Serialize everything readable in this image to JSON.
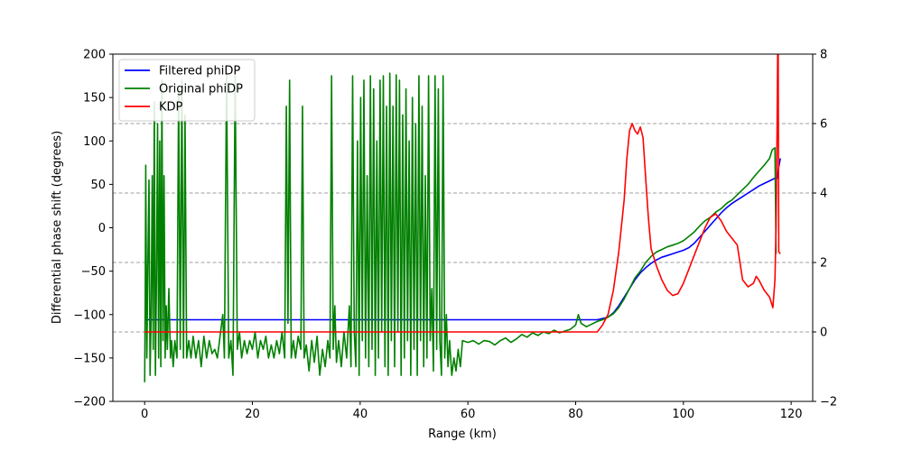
{
  "chart_data": {
    "type": "line",
    "title": "",
    "xlabel": "Range (km)",
    "ylabel": "Differential phase shift (degrees)",
    "xlim": [
      -5.9,
      124.0
    ],
    "ylim": [
      -200,
      200
    ],
    "ylim_right": [
      -2,
      8
    ],
    "x_ticks": [
      0,
      20,
      40,
      60,
      80,
      100,
      120
    ],
    "y_ticks": [
      -200,
      -150,
      -100,
      -50,
      0,
      50,
      100,
      150,
      200
    ],
    "y_ticks_right": [
      -2,
      0,
      2,
      4,
      6,
      8
    ],
    "grid_right_y": [
      0,
      2,
      4,
      6
    ],
    "legend_position": "upper-left",
    "legend": [
      "Filtered phiDP",
      "Original phiDP",
      "KDP"
    ],
    "series": [
      {
        "name": "Filtered phiDP",
        "axis": "left",
        "color": "#0000ff",
        "points": [
          [
            0,
            -106
          ],
          [
            80,
            -106
          ],
          [
            84,
            -106
          ],
          [
            86,
            -103
          ],
          [
            87,
            -98
          ],
          [
            88,
            -90
          ],
          [
            89,
            -80
          ],
          [
            90,
            -70
          ],
          [
            91,
            -60
          ],
          [
            92,
            -52
          ],
          [
            93,
            -46
          ],
          [
            94,
            -41
          ],
          [
            95,
            -37
          ],
          [
            96,
            -34
          ],
          [
            97,
            -32
          ],
          [
            98,
            -30
          ],
          [
            99,
            -28
          ],
          [
            100,
            -26
          ],
          [
            101,
            -23
          ],
          [
            102,
            -18
          ],
          [
            103,
            -11
          ],
          [
            104,
            -4
          ],
          [
            105,
            3
          ],
          [
            106,
            10
          ],
          [
            107,
            17
          ],
          [
            108,
            23
          ],
          [
            109,
            28
          ],
          [
            110,
            32
          ],
          [
            111,
            36
          ],
          [
            112,
            40
          ],
          [
            113,
            44
          ],
          [
            114,
            48
          ],
          [
            115,
            51
          ],
          [
            116,
            54
          ],
          [
            117,
            57
          ],
          [
            117.4,
            57
          ],
          [
            117.7,
            70
          ],
          [
            118,
            80
          ]
        ]
      },
      {
        "name": "Original phiDP",
        "axis": "left",
        "color": "#008000",
        "points": [
          [
            0,
            -178
          ],
          [
            0.1,
            -85
          ],
          [
            0.2,
            72
          ],
          [
            0.4,
            -150
          ],
          [
            0.6,
            -40
          ],
          [
            0.8,
            55
          ],
          [
            1,
            -170
          ],
          [
            1.2,
            -100
          ],
          [
            1.4,
            60
          ],
          [
            1.6,
            -140
          ],
          [
            1.8,
            145
          ],
          [
            2,
            -170
          ],
          [
            2.2,
            -60
          ],
          [
            2.4,
            120
          ],
          [
            2.6,
            -150
          ],
          [
            2.8,
            100
          ],
          [
            3,
            -160
          ],
          [
            3.2,
            170
          ],
          [
            3.4,
            -130
          ],
          [
            3.6,
            60
          ],
          [
            3.8,
            -150
          ],
          [
            4,
            -90
          ],
          [
            4.2,
            -140
          ],
          [
            4.5,
            -70
          ],
          [
            4.8,
            -150
          ],
          [
            5,
            -130
          ],
          [
            5.3,
            -160
          ],
          [
            5.6,
            -130
          ],
          [
            6,
            -150
          ],
          [
            6.3,
            160
          ],
          [
            6.6,
            -140
          ],
          [
            6.9,
            170
          ],
          [
            7.2,
            -150
          ],
          [
            7.5,
            130
          ],
          [
            7.8,
            -150
          ],
          [
            8.2,
            -130
          ],
          [
            8.6,
            -150
          ],
          [
            9,
            -125
          ],
          [
            9.5,
            -150
          ],
          [
            10,
            -130
          ],
          [
            10.5,
            -160
          ],
          [
            11,
            -125
          ],
          [
            11.5,
            -150
          ],
          [
            12,
            -130
          ],
          [
            12.5,
            -145
          ],
          [
            13,
            -140
          ],
          [
            13.5,
            -150
          ],
          [
            14,
            -125
          ],
          [
            14.5,
            -100
          ],
          [
            14.8,
            -150
          ],
          [
            15.2,
            178
          ],
          [
            15.6,
            -150
          ],
          [
            16,
            -130
          ],
          [
            16.4,
            -170
          ],
          [
            16.8,
            175
          ],
          [
            17.2,
            -140
          ],
          [
            17.6,
            -120
          ],
          [
            18,
            -150
          ],
          [
            18.5,
            -130
          ],
          [
            19,
            -145
          ],
          [
            19.5,
            -130
          ],
          [
            20,
            -140
          ],
          [
            20.5,
            -120
          ],
          [
            21,
            -150
          ],
          [
            21.5,
            -130
          ],
          [
            22,
            -140
          ],
          [
            22.5,
            -125
          ],
          [
            23,
            -150
          ],
          [
            23.5,
            -135
          ],
          [
            24,
            -150
          ],
          [
            24.5,
            -130
          ],
          [
            25,
            -145
          ],
          [
            25.5,
            -120
          ],
          [
            26,
            -150
          ],
          [
            26.3,
            140
          ],
          [
            26.6,
            -110
          ],
          [
            26.9,
            170
          ],
          [
            27.2,
            -150
          ],
          [
            27.6,
            -130
          ],
          [
            28,
            -150
          ],
          [
            28.5,
            -125
          ],
          [
            29,
            -140
          ],
          [
            29.3,
            140
          ],
          [
            29.6,
            -150
          ],
          [
            30,
            -135
          ],
          [
            30.5,
            -165
          ],
          [
            31,
            -130
          ],
          [
            31.5,
            -155
          ],
          [
            32,
            -125
          ],
          [
            32.5,
            -170
          ],
          [
            33,
            -140
          ],
          [
            33.5,
            -160
          ],
          [
            34,
            -130
          ],
          [
            34.4,
            -150
          ],
          [
            34.7,
            175
          ],
          [
            35,
            -140
          ],
          [
            35.3,
            -90
          ],
          [
            35.6,
            -155
          ],
          [
            36,
            -130
          ],
          [
            36.5,
            -160
          ],
          [
            37,
            -120
          ],
          [
            37.5,
            -150
          ],
          [
            38,
            -90
          ],
          [
            38.3,
            -160
          ],
          [
            38.6,
            175
          ],
          [
            38.9,
            -120
          ],
          [
            39.2,
            -160
          ],
          [
            39.5,
            100
          ],
          [
            39.8,
            -170
          ],
          [
            40.1,
            150
          ],
          [
            40.4,
            -130
          ],
          [
            40.7,
            170
          ],
          [
            41,
            -150
          ],
          [
            41.3,
            60
          ],
          [
            41.6,
            -160
          ],
          [
            41.9,
            175
          ],
          [
            42.2,
            -140
          ],
          [
            42.5,
            160
          ],
          [
            42.8,
            -170
          ],
          [
            43.1,
            100
          ],
          [
            43.4,
            -150
          ],
          [
            43.7,
            170
          ],
          [
            44,
            -120
          ],
          [
            44.3,
            175
          ],
          [
            44.6,
            -160
          ],
          [
            44.9,
            140
          ],
          [
            45.2,
            -170
          ],
          [
            45.5,
            178
          ],
          [
            45.8,
            -130
          ],
          [
            46.1,
            140
          ],
          [
            46.4,
            -160
          ],
          [
            46.7,
            176
          ],
          [
            47,
            -120
          ],
          [
            47.3,
            170
          ],
          [
            47.6,
            -170
          ],
          [
            47.9,
            130
          ],
          [
            48.2,
            -150
          ],
          [
            48.5,
            160
          ],
          [
            48.8,
            -130
          ],
          [
            49.1,
            100
          ],
          [
            49.4,
            -170
          ],
          [
            49.7,
            150
          ],
          [
            50,
            -140
          ],
          [
            50.3,
            120
          ],
          [
            50.6,
            -170
          ],
          [
            50.9,
            175
          ],
          [
            51.2,
            -130
          ],
          [
            51.5,
            140
          ],
          [
            51.8,
            -160
          ],
          [
            52.1,
            60
          ],
          [
            52.4,
            -150
          ],
          [
            52.7,
            175
          ],
          [
            53,
            -130
          ],
          [
            53.3,
            -70
          ],
          [
            53.6,
            -165
          ],
          [
            53.9,
            175
          ],
          [
            54.2,
            -140
          ],
          [
            54.5,
            160
          ],
          [
            54.8,
            -130
          ],
          [
            55.1,
            -170
          ],
          [
            55.4,
            175
          ],
          [
            55.7,
            -150
          ],
          [
            56,
            -100
          ],
          [
            56.3,
            -160
          ],
          [
            56.6,
            -130
          ],
          [
            57,
            -170
          ],
          [
            57.4,
            -150
          ],
          [
            57.8,
            -165
          ],
          [
            58.2,
            -140
          ],
          [
            58.6,
            -160
          ],
          [
            59,
            -130
          ],
          [
            60,
            -132
          ],
          [
            61,
            -130
          ],
          [
            62,
            -134
          ],
          [
            63,
            -130
          ],
          [
            64,
            -131
          ],
          [
            65,
            -135
          ],
          [
            66,
            -130
          ],
          [
            67,
            -127
          ],
          [
            68,
            -132
          ],
          [
            69,
            -128
          ],
          [
            70,
            -123
          ],
          [
            71,
            -126
          ],
          [
            72,
            -121
          ],
          [
            73,
            -124
          ],
          [
            74,
            -120
          ],
          [
            75,
            -122
          ],
          [
            76,
            -118
          ],
          [
            77,
            -121
          ],
          [
            78,
            -119
          ],
          [
            79,
            -117
          ],
          [
            80,
            -112
          ],
          [
            80.5,
            -100
          ],
          [
            81,
            -110
          ],
          [
            82,
            -114
          ],
          [
            83,
            -111
          ],
          [
            84,
            -108
          ],
          [
            85,
            -106
          ],
          [
            86,
            -103
          ],
          [
            87,
            -99
          ],
          [
            88,
            -92
          ],
          [
            89,
            -82
          ],
          [
            90,
            -70
          ],
          [
            91,
            -58
          ],
          [
            92,
            -50
          ],
          [
            93,
            -40
          ],
          [
            94,
            -33
          ],
          [
            95,
            -28
          ],
          [
            96,
            -25
          ],
          [
            97,
            -22
          ],
          [
            98,
            -20
          ],
          [
            99,
            -18
          ],
          [
            100,
            -15
          ],
          [
            101,
            -10
          ],
          [
            102,
            -5
          ],
          [
            103,
            2
          ],
          [
            104,
            8
          ],
          [
            105,
            12
          ],
          [
            106,
            18
          ],
          [
            107,
            22
          ],
          [
            108,
            28
          ],
          [
            109,
            32
          ],
          [
            110,
            38
          ],
          [
            111,
            44
          ],
          [
            112,
            50
          ],
          [
            113,
            58
          ],
          [
            114,
            65
          ],
          [
            115,
            72
          ],
          [
            116,
            80
          ],
          [
            116.5,
            90
          ],
          [
            117,
            92
          ],
          [
            117.2,
            -30
          ]
        ]
      },
      {
        "name": "KDP",
        "axis": "right",
        "color": "#ff0000",
        "points": [
          [
            0,
            0
          ],
          [
            84,
            0
          ],
          [
            85,
            0.2
          ],
          [
            86,
            0.5
          ],
          [
            87,
            1.2
          ],
          [
            88,
            2.3
          ],
          [
            89,
            3.8
          ],
          [
            89.5,
            5.0
          ],
          [
            90,
            5.8
          ],
          [
            90.5,
            6.0
          ],
          [
            91,
            5.8
          ],
          [
            91.5,
            5.7
          ],
          [
            92,
            5.9
          ],
          [
            92.5,
            5.6
          ],
          [
            93,
            4.4
          ],
          [
            93.5,
            3.3
          ],
          [
            94,
            2.4
          ],
          [
            95,
            1.9
          ],
          [
            96,
            1.5
          ],
          [
            97,
            1.2
          ],
          [
            98,
            1.05
          ],
          [
            99,
            1.1
          ],
          [
            100,
            1.4
          ],
          [
            101,
            1.8
          ],
          [
            102,
            2.2
          ],
          [
            103,
            2.6
          ],
          [
            104,
            3.0
          ],
          [
            105,
            3.3
          ],
          [
            106,
            3.4
          ],
          [
            107,
            3.2
          ],
          [
            108,
            2.9
          ],
          [
            108.5,
            2.8
          ],
          [
            109,
            2.7
          ],
          [
            109.5,
            2.6
          ],
          [
            110,
            2.5
          ],
          [
            111,
            1.5
          ],
          [
            112,
            1.3
          ],
          [
            113,
            1.4
          ],
          [
            113.5,
            1.6
          ],
          [
            114,
            1.5
          ],
          [
            115,
            1.2
          ],
          [
            116,
            1.0
          ],
          [
            116.6,
            0.7
          ],
          [
            117,
            1.5
          ],
          [
            117.2,
            3.0
          ],
          [
            117.4,
            6.0
          ],
          [
            117.5,
            8.0
          ],
          [
            117.6,
            8.0
          ],
          [
            117.7,
            2.3
          ],
          [
            118,
            2.25
          ]
        ]
      }
    ]
  }
}
